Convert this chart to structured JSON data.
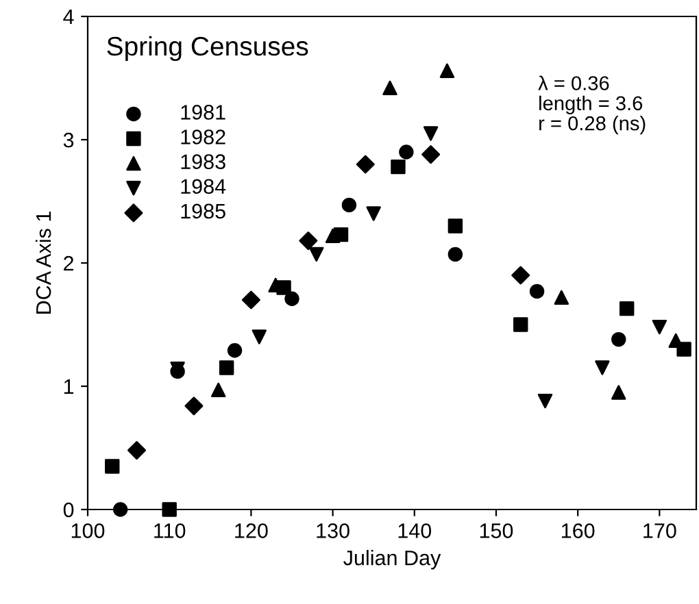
{
  "chart_data": {
    "type": "scatter",
    "title": "Spring Censuses",
    "xlabel": "Julian Day",
    "ylabel": "DCA Axis 1",
    "annotations": [
      "λ = 0.36\nlength = 3.6\nr = 0.28 (ns)"
    ],
    "xlim": [
      100,
      174.5
    ],
    "xticks": [
      100,
      110,
      120,
      130,
      140,
      150,
      160,
      170
    ],
    "ylim": [
      0,
      4
    ],
    "yticks": [
      0,
      1,
      2,
      3,
      4
    ],
    "grid": false,
    "legend": "top left",
    "series": [
      {
        "name": "1981",
        "color": "#000000",
        "marker": "circle",
        "x": [
          104,
          111,
          118,
          125,
          132,
          139,
          145,
          155,
          165
        ],
        "values": [
          0,
          1.12,
          1.29,
          1.71,
          2.47,
          2.9,
          2.07,
          1.77,
          1.38
        ]
      },
      {
        "name": "1982",
        "color": "#000000",
        "marker": "square",
        "x": [
          103,
          110,
          117,
          124,
          131,
          138,
          145,
          153,
          166,
          173
        ],
        "values": [
          0.35,
          0,
          1.15,
          1.8,
          2.23,
          2.78,
          2.3,
          1.5,
          1.63,
          1.3
        ]
      },
      {
        "name": "1983",
        "color": "#000000",
        "marker": "triangle",
        "x": [
          116,
          123,
          130,
          137,
          144,
          158,
          165,
          172
        ],
        "values": [
          0.97,
          1.82,
          2.22,
          3.42,
          3.56,
          1.72,
          0.95,
          1.37
        ]
      },
      {
        "name": "1984",
        "color": "#000000",
        "marker": "triangle_down",
        "x": [
          111,
          121,
          128,
          135,
          142,
          156,
          163,
          170
        ],
        "values": [
          1.14,
          1.4,
          2.07,
          2.4,
          3.05,
          0.88,
          1.15,
          1.48
        ]
      },
      {
        "name": "1985",
        "color": "#000000",
        "marker": "diamond",
        "x": [
          106,
          113,
          120,
          127,
          134,
          142,
          153
        ],
        "values": [
          0.48,
          0.84,
          1.7,
          2.18,
          2.8,
          2.88,
          1.9
        ]
      }
    ]
  }
}
